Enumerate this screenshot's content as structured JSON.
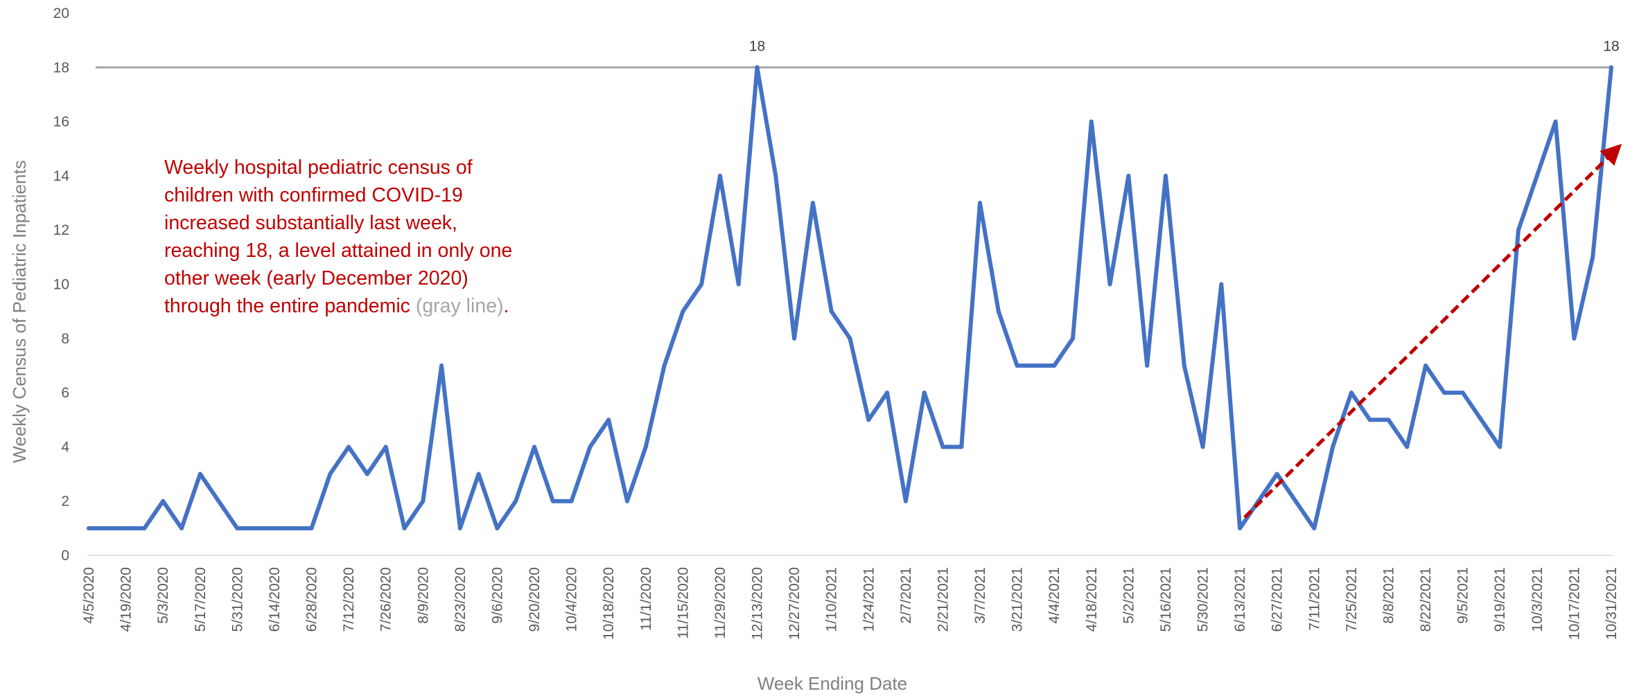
{
  "chart_data": {
    "type": "line",
    "xlabel": "Week Ending Date",
    "ylabel": "Weekly Census of Pediatric Inpatients",
    "ylim": [
      0,
      20
    ],
    "yticks": [
      0,
      2,
      4,
      6,
      8,
      10,
      12,
      14,
      16,
      18,
      20
    ],
    "grid": false,
    "legend": "none",
    "tick_labels_every": 2,
    "x": [
      "4/5/2020",
      "4/12/2020",
      "4/19/2020",
      "4/26/2020",
      "5/3/2020",
      "5/10/2020",
      "5/17/2020",
      "5/24/2020",
      "5/31/2020",
      "6/7/2020",
      "6/14/2020",
      "6/21/2020",
      "6/28/2020",
      "7/5/2020",
      "7/12/2020",
      "7/19/2020",
      "7/26/2020",
      "8/2/2020",
      "8/9/2020",
      "8/16/2020",
      "8/23/2020",
      "8/30/2020",
      "9/6/2020",
      "9/13/2020",
      "9/20/2020",
      "9/27/2020",
      "10/4/2020",
      "10/11/2020",
      "10/18/2020",
      "10/25/2020",
      "11/1/2020",
      "11/8/2020",
      "11/15/2020",
      "11/22/2020",
      "11/29/2020",
      "12/6/2020",
      "12/13/2020",
      "12/20/2020",
      "12/27/2020",
      "1/3/2021",
      "1/10/2021",
      "1/17/2021",
      "1/24/2021",
      "1/31/2021",
      "2/7/2021",
      "2/14/2021",
      "2/21/2021",
      "2/28/2021",
      "3/7/2021",
      "3/14/2021",
      "3/21/2021",
      "3/28/2021",
      "4/4/2021",
      "4/11/2021",
      "4/18/2021",
      "4/25/2021",
      "5/2/2021",
      "5/9/2021",
      "5/16/2021",
      "5/23/2021",
      "5/30/2021",
      "6/6/2021",
      "6/13/2021",
      "6/20/2021",
      "6/27/2021",
      "7/4/2021",
      "7/11/2021",
      "7/18/2021",
      "7/25/2021",
      "8/1/2021",
      "8/8/2021",
      "8/15/2021",
      "8/22/2021",
      "8/29/2021",
      "9/5/2021",
      "9/12/2021",
      "9/19/2021",
      "9/26/2021",
      "10/3/2021",
      "10/10/2021",
      "10/17/2021",
      "10/24/2021",
      "10/31/2021"
    ],
    "series": [
      {
        "values": [
          1,
          1,
          1,
          1,
          2,
          1,
          3,
          2,
          1,
          1,
          1,
          1,
          1,
          3,
          4,
          3,
          4,
          1,
          2,
          7,
          1,
          3,
          1,
          2,
          4,
          2,
          2,
          4,
          5,
          2,
          4,
          7,
          9,
          10,
          14,
          10,
          18,
          14,
          8,
          13,
          9,
          8,
          5,
          6,
          2,
          6,
          4,
          4,
          13,
          9,
          7,
          7,
          7,
          8,
          16,
          10,
          14,
          7,
          14,
          7,
          4,
          10,
          1,
          2,
          3,
          2,
          1,
          4,
          6,
          5,
          5,
          4,
          7,
          6,
          6,
          5,
          4,
          12,
          14,
          16,
          8,
          11,
          18
        ],
        "color": "#4472c4"
      }
    ],
    "data_labels": [
      {
        "x": "12/13/2020",
        "text": "18"
      },
      {
        "x": "10/31/2021",
        "text": "18"
      }
    ],
    "reference_line": {
      "y": 18,
      "color": "#a6a6a6"
    },
    "trend_arrow": {
      "from": {
        "x": "6/20/2021",
        "y": 1.4
      },
      "to": {
        "x": "10/31/2021",
        "y": 15
      },
      "color": "#c00000",
      "style": "dashed"
    },
    "annotation": {
      "lines": [
        "Weekly hospital pediatric census of",
        "children with confirmed COVID-19",
        "increased substantially last week,",
        "reaching 18, a level attained in only one",
        "other week (early December 2020)",
        "through the entire pandemic "
      ],
      "gray_text": "(gray line)",
      "end_text": ".",
      "color": "#c00000",
      "gray_color": "#a6a6a6"
    }
  }
}
